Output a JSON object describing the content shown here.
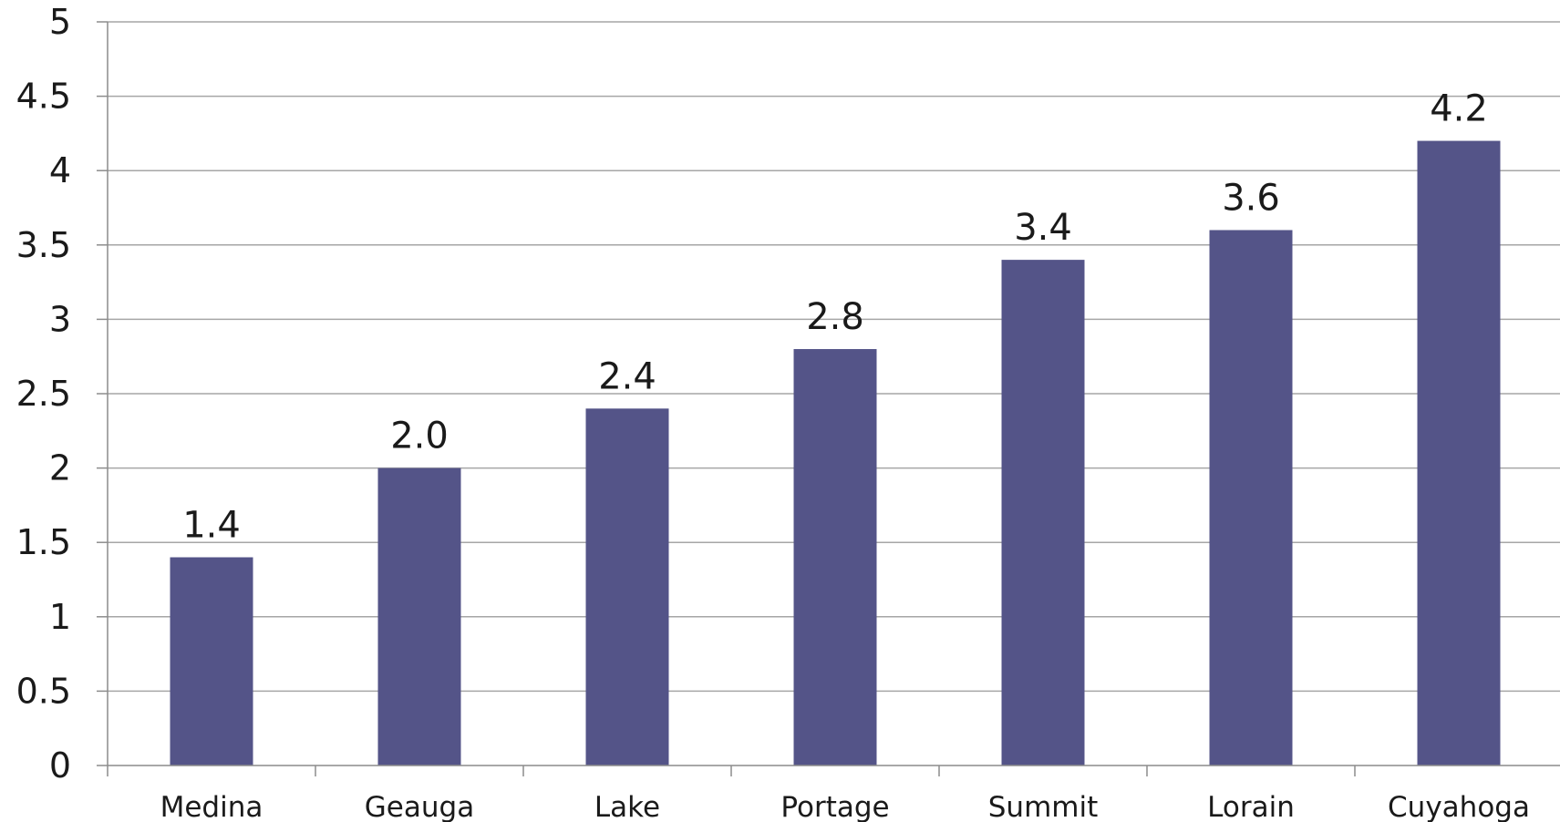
{
  "chart_data": {
    "type": "bar",
    "title": "",
    "xlabel": "",
    "ylabel": "",
    "categories": [
      "Medina",
      "Geauga",
      "Lake",
      "Portage",
      "Summit",
      "Lorain",
      "Cuyahoga"
    ],
    "values": [
      1.4,
      2.0,
      2.4,
      2.8,
      3.4,
      3.6,
      4.2
    ],
    "data_labels": [
      "1.4",
      "2.0",
      "2.4",
      "2.8",
      "3.4",
      "3.6",
      "4.2"
    ],
    "y_ticks": [
      "0",
      "0.5",
      "1",
      "1.5",
      "2",
      "2.5",
      "3",
      "3.5",
      "4",
      "4.5",
      "5"
    ],
    "ylim": [
      0,
      5
    ],
    "grid": true,
    "legend": "none",
    "bar_color": "#545488"
  }
}
